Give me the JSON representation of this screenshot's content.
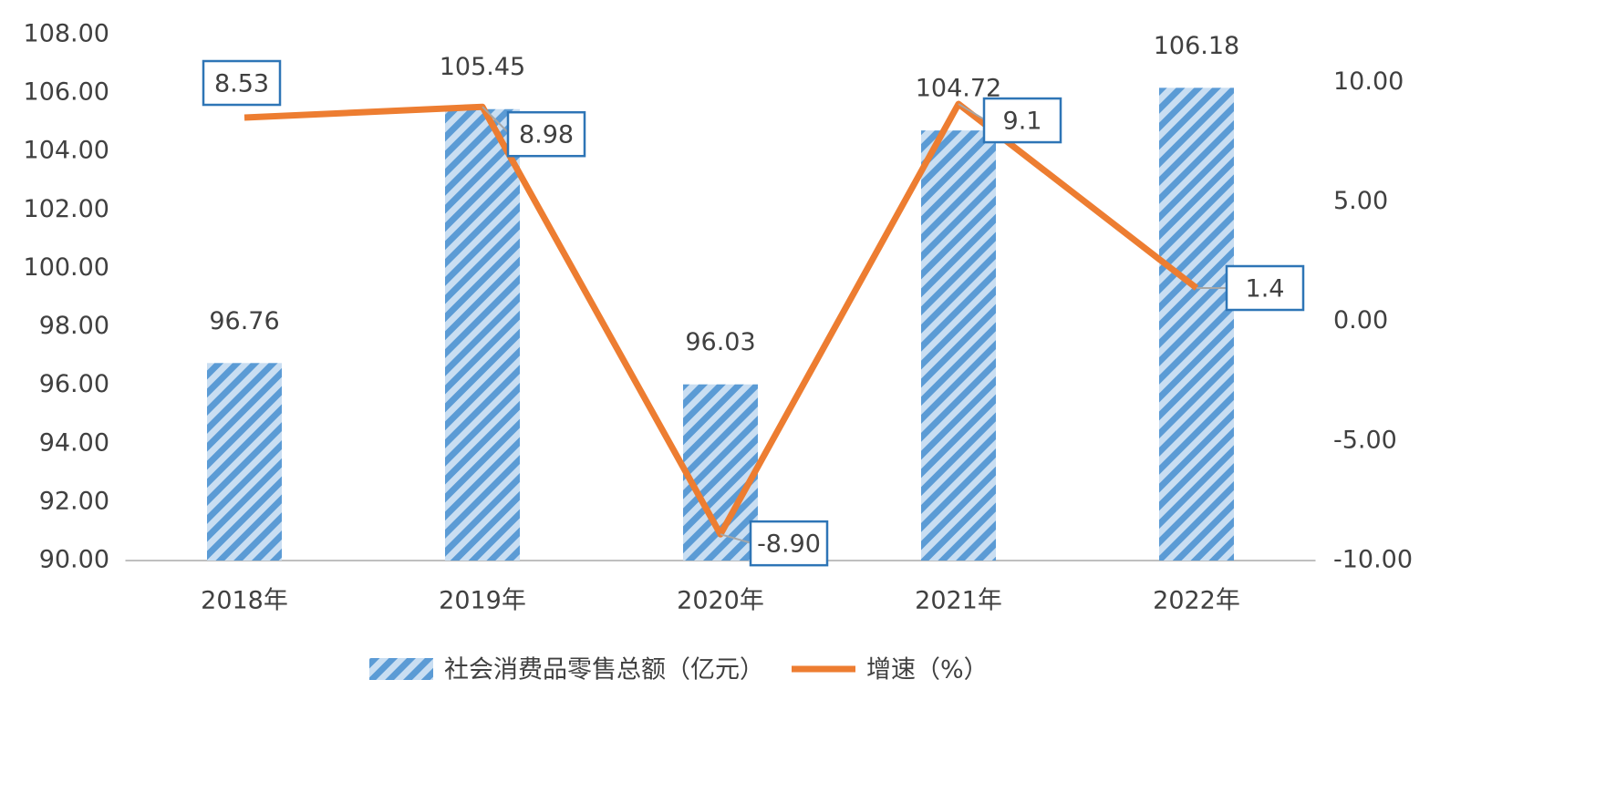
{
  "chart_data": {
    "type": "bar",
    "categories": [
      "2018年",
      "2019年",
      "2020年",
      "2021年",
      "2022年"
    ],
    "series": [
      {
        "name": "社会消费品零售总额（亿元）",
        "type": "bar",
        "color": "#5b9bd5",
        "values": [
          96.76,
          105.45,
          96.03,
          104.72,
          106.18
        ]
      },
      {
        "name": "增速（%）",
        "type": "line",
        "axis": "y2",
        "color": "#ed7d31",
        "values": [
          8.53,
          8.98,
          -8.9,
          9.1,
          1.4
        ],
        "value_labels": [
          "8.53",
          "8.98",
          "-8.90",
          "9.1",
          "1.4"
        ]
      }
    ],
    "ylim": [
      90,
      108
    ],
    "yticks": [
      {
        "value": 90,
        "label": "90.00"
      },
      {
        "value": 92,
        "label": "92.00"
      },
      {
        "value": 94,
        "label": "94.00"
      },
      {
        "value": 96,
        "label": "96.00"
      },
      {
        "value": 98,
        "label": "98.00"
      },
      {
        "value": 100,
        "label": "100.00"
      },
      {
        "value": 102,
        "label": "102.00"
      },
      {
        "value": 104,
        "label": "104.00"
      },
      {
        "value": 106,
        "label": "106.00"
      },
      {
        "value": 108,
        "label": "108.00"
      }
    ],
    "y2lim": [
      -10,
      12
    ],
    "y2ticks": [
      {
        "value": -10,
        "label": "-10.00"
      },
      {
        "value": -5,
        "label": "-5.00"
      },
      {
        "value": 0,
        "label": "0.00"
      },
      {
        "value": 5,
        "label": "5.00"
      },
      {
        "value": 10,
        "label": "10.00"
      }
    ],
    "legend": "bottom",
    "grid": false
  }
}
